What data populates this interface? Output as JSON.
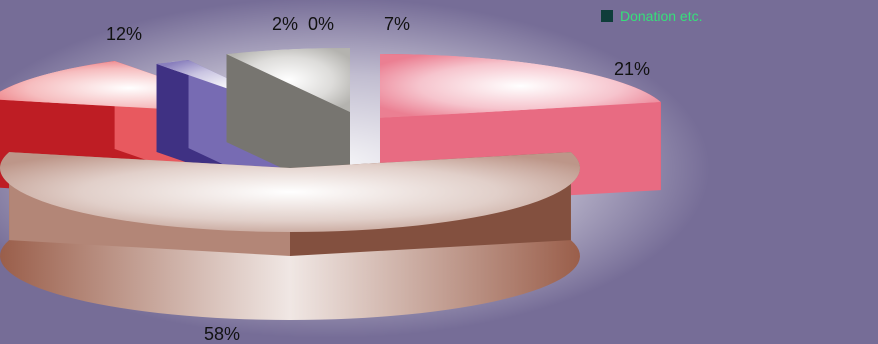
{
  "chart_data": {
    "type": "pie",
    "style": "3d-exploded",
    "slices": [
      {
        "label": "58%",
        "value": 58,
        "color": "#9a5e4a"
      },
      {
        "label": "12%",
        "value": 12,
        "color": "#e0222a"
      },
      {
        "label": "2%",
        "value": 2,
        "color": "#4a3a9a"
      },
      {
        "label": "0%",
        "value": 0,
        "color": "#b8b0d0"
      },
      {
        "label": "7%",
        "value": 7,
        "color": "#8c8a84"
      },
      {
        "label": "21%",
        "value": 21,
        "color": "#e03a58"
      }
    ],
    "legend": {
      "placement": "top-right",
      "entries": [
        {
          "label": "Donation etc.",
          "color": "#0f3d3a",
          "text_color": "#36e07a"
        }
      ]
    }
  }
}
